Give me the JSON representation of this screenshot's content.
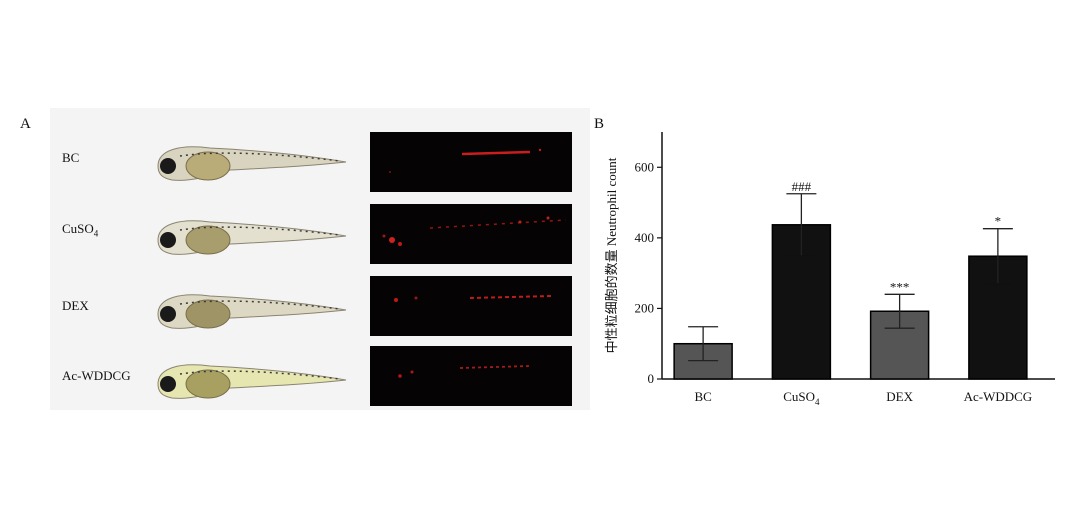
{
  "panel_a": {
    "letter": "A",
    "rows": [
      {
        "label": "BC",
        "sub": ""
      },
      {
        "label": "CuSO",
        "sub": "4"
      },
      {
        "label": "DEX",
        "sub": ""
      },
      {
        "label": "Ac-WDDCG",
        "sub": ""
      }
    ]
  },
  "panel_b": {
    "letter": "B"
  },
  "chart_data": {
    "type": "bar",
    "title": "",
    "xlabel": "",
    "ylabel": "中性粒细胞的数量 Neutrophil count",
    "categories": [
      {
        "text": "BC",
        "sub": ""
      },
      {
        "text": "CuSO",
        "sub": "4"
      },
      {
        "text": "DEX",
        "sub": ""
      },
      {
        "text": "Ac-WDDCG",
        "sub": ""
      }
    ],
    "values": [
      100,
      437,
      192,
      348
    ],
    "errors": [
      48,
      88,
      48,
      78
    ],
    "significance": [
      "",
      "###",
      "***",
      "*"
    ],
    "bar_colors": [
      "#555555",
      "#111111",
      "#555555",
      "#111111"
    ],
    "ylim": [
      0,
      700
    ],
    "yticks": [
      0,
      200,
      400,
      600
    ],
    "grid": false
  }
}
